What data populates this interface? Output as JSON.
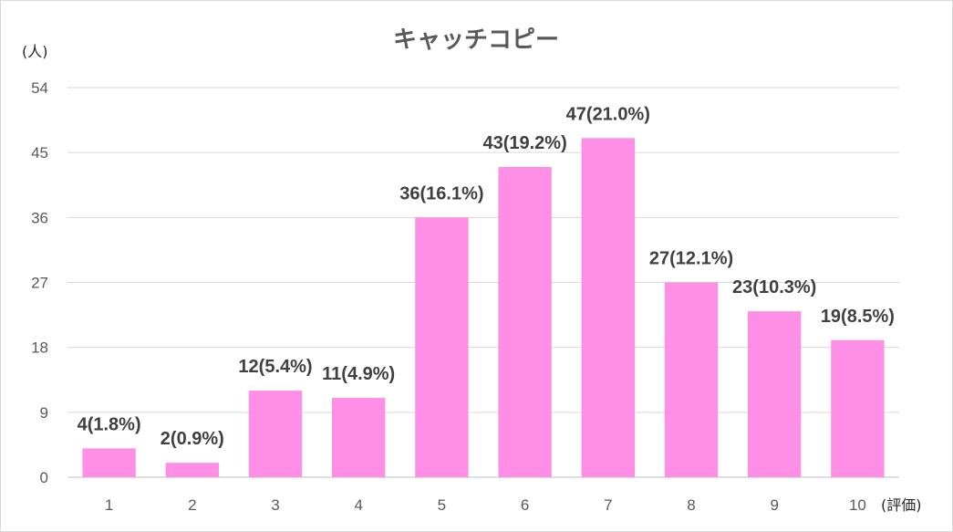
{
  "chart_data": {
    "type": "bar",
    "title": "キャッチコピー",
    "ylabel": "(人)",
    "xlabel": "(評価)",
    "categories": [
      "1",
      "2",
      "3",
      "4",
      "5",
      "6",
      "7",
      "8",
      "9",
      "10"
    ],
    "values": [
      4,
      2,
      12,
      11,
      36,
      43,
      47,
      27,
      23,
      19
    ],
    "data_labels": [
      "4(1.8%)",
      "2(0.9%)",
      "12(5.4%)",
      "11(4.9%)",
      "36(16.1%)",
      "43(19.2%)",
      "47(21.0%)",
      "27(12.1%)",
      "23(10.3%)",
      "19(8.5%)"
    ],
    "ylim": [
      0,
      54
    ],
    "yticks": [
      0,
      9,
      18,
      27,
      36,
      45,
      54
    ],
    "grid": true,
    "colors": {
      "bar": "#ff8ee6",
      "text": "#595959",
      "label": "#404040",
      "grid": "#d9d9d9"
    }
  }
}
